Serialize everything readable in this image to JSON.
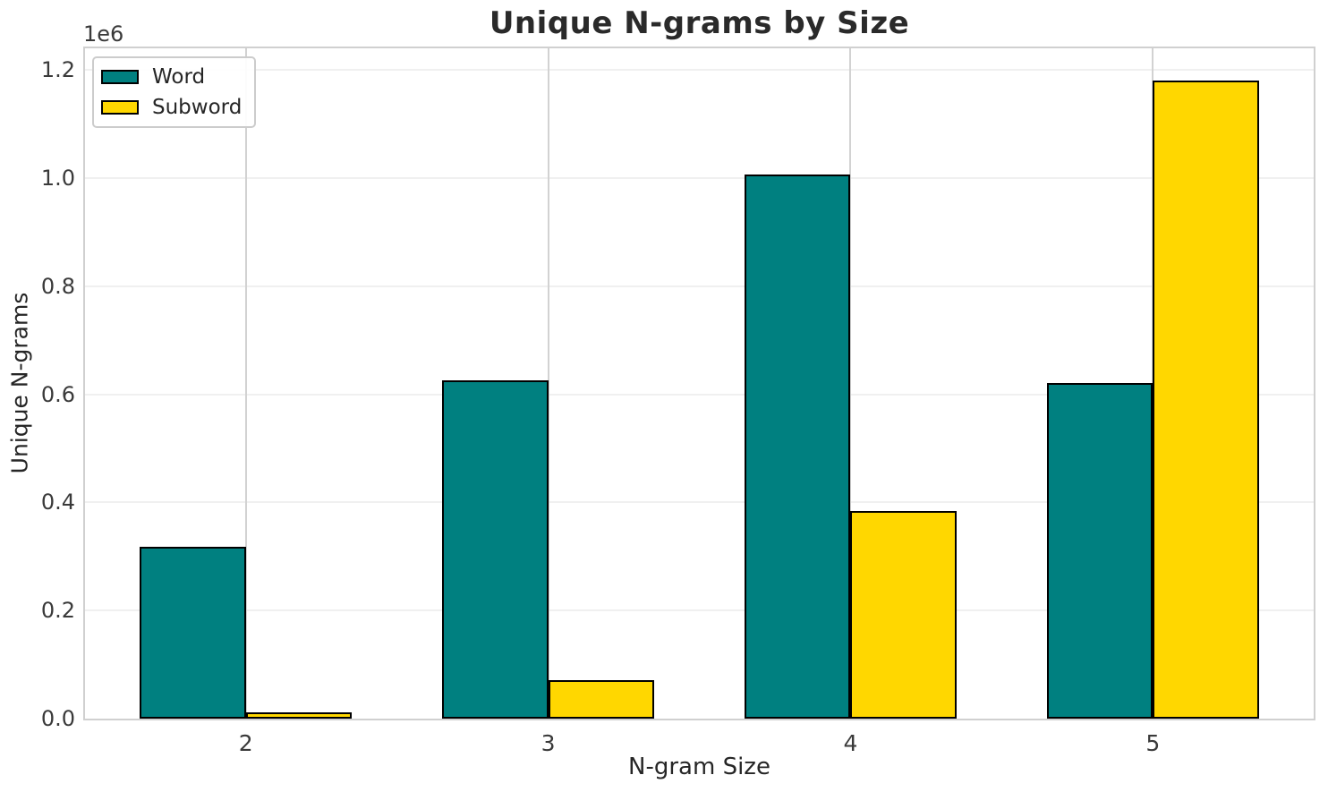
{
  "title": "Unique N-grams by Size",
  "axes": {
    "x_label": "N-gram Size",
    "y_label": "Unique N-grams",
    "offset_label": "1e6",
    "x_ticks": [
      "2",
      "3",
      "4",
      "5"
    ],
    "y_ticks": [
      "0.0",
      "0.2",
      "0.4",
      "0.6",
      "0.8",
      "1.0",
      "1.2"
    ]
  },
  "legend": {
    "position": "upper left",
    "entries": [
      {
        "label": "Word",
        "color": "#008080"
      },
      {
        "label": "Subword",
        "color": "#FFD700"
      }
    ]
  },
  "colors": {
    "word": "#008080",
    "subword": "#FFD700",
    "bar_edge": "#000000",
    "grid_horizontal": "#f0f0f0",
    "grid_vertical": "#d2d2d2",
    "spine": "#d0d0d0",
    "text": "#262626"
  },
  "chart_data": {
    "type": "bar",
    "title": "Unique N-grams by Size",
    "xlabel": "N-gram Size",
    "ylabel": "Unique N-grams",
    "y_scale_factor": "1e6",
    "categories": [
      "2",
      "3",
      "4",
      "5"
    ],
    "series": [
      {
        "name": "Word",
        "color": "#008080",
        "values": [
          318000,
          626000,
          1007000,
          621000
        ]
      },
      {
        "name": "Subword",
        "color": "#FFD700",
        "values": [
          12000,
          71000,
          384000,
          1180000
        ]
      }
    ],
    "ylim": [
      0,
      1240000
    ],
    "y_tick_step": 200000,
    "grid": true,
    "legend_position": "upper left",
    "bar_width_category_units": 0.35
  }
}
